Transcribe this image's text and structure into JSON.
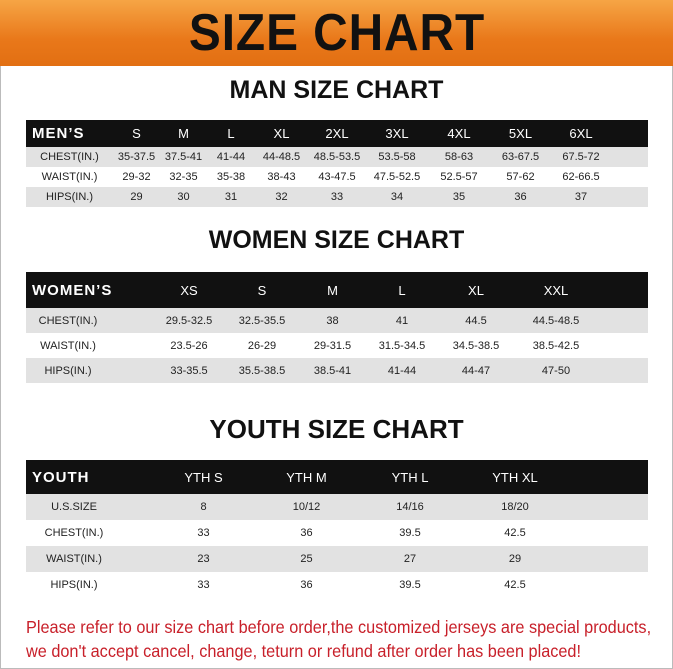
{
  "banner": "SIZE CHART",
  "men": {
    "title": "MAN SIZE CHART",
    "header": "MEN’S",
    "sizes": [
      "S",
      "M",
      "L",
      "XL",
      "2XL",
      "3XL",
      "4XL",
      "5XL",
      "6XL"
    ],
    "rows": [
      {
        "label": "CHEST(IN.)",
        "values": [
          "35-37.5",
          "37.5-41",
          "41-44",
          "44-48.5",
          "48.5-53.5",
          "53.5-58",
          "58-63",
          "63-67.5",
          "67.5-72"
        ]
      },
      {
        "label": "WAIST(IN.)",
        "values": [
          "29-32",
          "32-35",
          "35-38",
          "38-43",
          "43-47.5",
          "47.5-52.5",
          "52.5-57",
          "57-62",
          "62-66.5"
        ]
      },
      {
        "label": "HIPS(IN.)",
        "values": [
          "29",
          "30",
          "31",
          "32",
          "33",
          "34",
          "35",
          "36",
          "37"
        ]
      }
    ]
  },
  "women": {
    "title": "WOMEN SIZE CHART",
    "header": "WOMEN’S",
    "sizes": [
      "XS",
      "S",
      "M",
      "L",
      "XL",
      "XXL"
    ],
    "rows": [
      {
        "label": "CHEST(IN.)",
        "values": [
          "29.5-32.5",
          "32.5-35.5",
          "38",
          "41",
          "44.5",
          "44.5-48.5"
        ]
      },
      {
        "label": "WAIST(IN.)",
        "values": [
          "23.5-26",
          "26-29",
          "29-31.5",
          "31.5-34.5",
          "34.5-38.5",
          "38.5-42.5"
        ]
      },
      {
        "label": "HIPS(IN.)",
        "values": [
          "33-35.5",
          "35.5-38.5",
          "38.5-41",
          "41-44",
          "44-47",
          "47-50"
        ]
      }
    ]
  },
  "youth": {
    "title": "YOUTH SIZE CHART",
    "header": "YOUTH",
    "sizes": [
      "YTH S",
      "YTH M",
      "YTH L",
      "YTH XL"
    ],
    "rows": [
      {
        "label": "U.S.SIZE",
        "values": [
          "8",
          "10/12",
          "14/16",
          "18/20"
        ]
      },
      {
        "label": "CHEST(IN.)",
        "values": [
          "33",
          "36",
          "39.5",
          "42.5"
        ]
      },
      {
        "label": "WAIST(IN.)",
        "values": [
          "23",
          "25",
          "27",
          "29"
        ]
      },
      {
        "label": "HIPS(IN.)",
        "values": [
          "33",
          "36",
          "39.5",
          "42.5"
        ]
      }
    ]
  },
  "notice": [
    "Please refer to our size chart before order,the customized jerseys are special products,",
    "we don't accept cancel, change, teturn or refund after order has been placed!"
  ],
  "colors": {
    "banner": "#e9781a",
    "header_row": "#111111",
    "stripe": "#e2e2e2",
    "notice": "#c8202a"
  }
}
